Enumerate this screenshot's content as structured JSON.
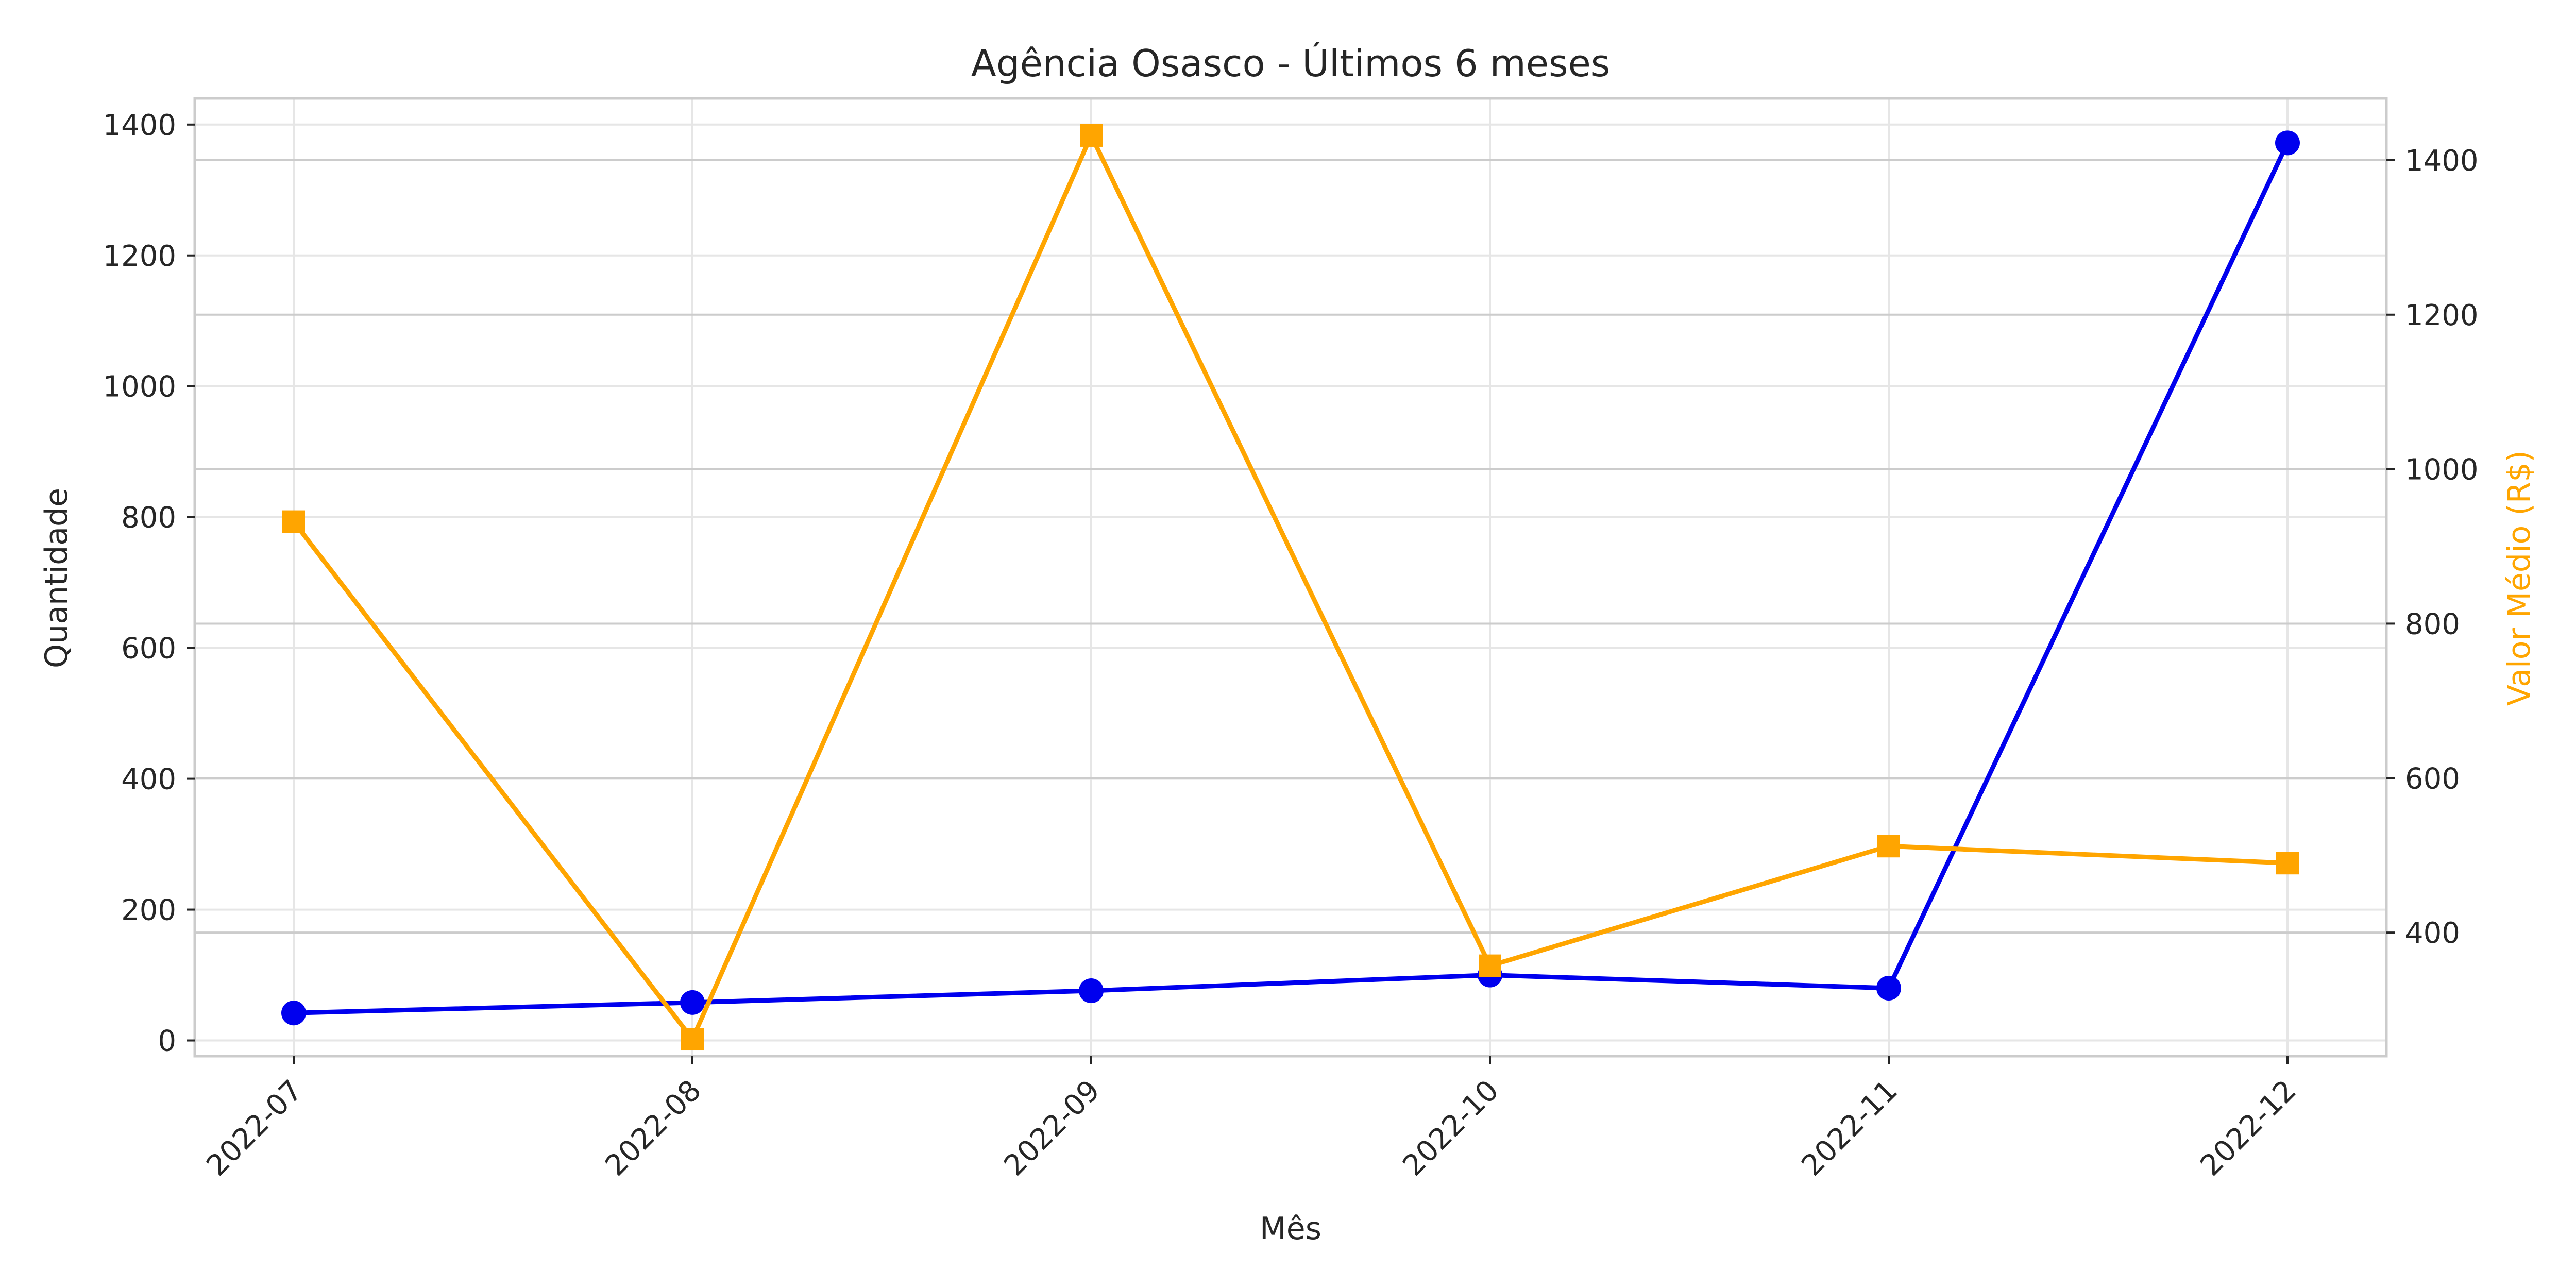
{
  "chart_data": {
    "type": "line",
    "title": "Agência Osasco - Últimos 6 meses",
    "xlabel": "Mês",
    "ylabel_left": "Quantidade",
    "ylabel_right": "Valor Médio (R$)",
    "categories": [
      "2022-07",
      "2022-08",
      "2022-09",
      "2022-10",
      "2022-11",
      "2022-12"
    ],
    "y_left": {
      "ylim": [
        -24,
        1440
      ],
      "ticks": [
        0,
        200,
        400,
        600,
        800,
        1000,
        1200,
        1400
      ]
    },
    "y_right": {
      "ylim": [
        240,
        1480
      ],
      "ticks": [
        400,
        600,
        800,
        1000,
        1200,
        1400
      ]
    },
    "grid": true,
    "series": [
      {
        "axis": "left",
        "color": "#0000ee",
        "marker": "circle",
        "values": [
          42,
          58,
          76,
          100,
          80,
          1372
        ]
      },
      {
        "axis": "right",
        "color": "#ffa500",
        "marker": "square",
        "values": [
          932,
          262,
          1432,
          357,
          512,
          490
        ]
      }
    ]
  }
}
